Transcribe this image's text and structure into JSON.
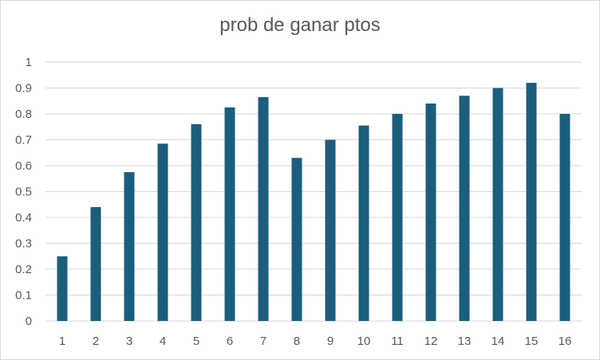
{
  "chart_data": {
    "type": "bar",
    "title": "prob de ganar ptos",
    "xlabel": "",
    "ylabel": "",
    "categories": [
      "1",
      "2",
      "3",
      "4",
      "5",
      "6",
      "7",
      "8",
      "9",
      "10",
      "11",
      "12",
      "13",
      "14",
      "15",
      "16"
    ],
    "values": [
      0.25,
      0.44,
      0.575,
      0.685,
      0.76,
      0.825,
      0.865,
      0.63,
      0.7,
      0.755,
      0.8,
      0.84,
      0.87,
      0.9,
      0.92,
      0.8
    ],
    "ylim": [
      0,
      1
    ],
    "yticks": [
      "0",
      "0.1",
      "0.2",
      "0.3",
      "0.4",
      "0.5",
      "0.6",
      "0.7",
      "0.8",
      "0.9",
      "1"
    ],
    "grid": true,
    "legend": "none",
    "bar_color": "#1b5e7b",
    "gridline_color": "#d9d9d9",
    "text_color": "#595959"
  }
}
